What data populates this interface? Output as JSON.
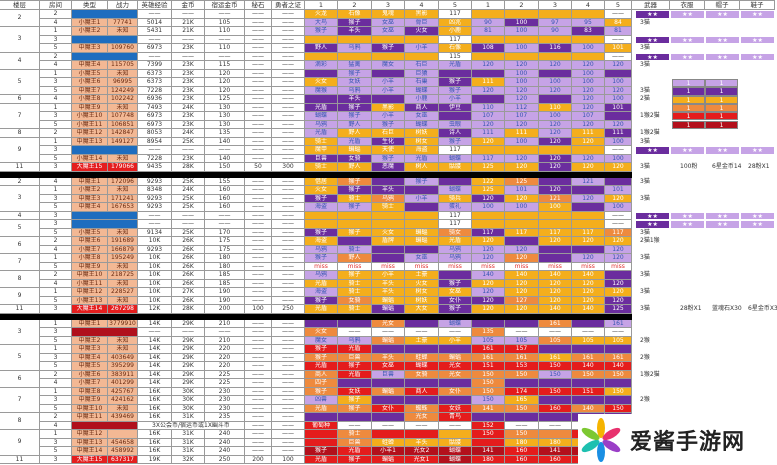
{
  "headers": [
    "楼层",
    "房间",
    "类型",
    "战力",
    "英雄经验",
    "金币",
    "宿运金币",
    "秘石",
    "勇者之证",
    "1",
    "2",
    "3",
    "4",
    "5",
    "1",
    "2",
    "3",
    "4",
    "5",
    "武器",
    "衣服",
    "帽子",
    "鞋子"
  ],
  "palette": {
    "Y": "#f4ae1c",
    "P": "#6b2d9e",
    "L": "#c6a3e6",
    "W": "#ffffff",
    "O": "#ee8a3e",
    "R": "#e41c1c",
    "D": "#b3101c"
  },
  "type_colors": {
    "s": "#f3b894",
    "b": "#1e6dbf",
    "r": "#e41e1e",
    "d": "#b0101c"
  },
  "stars": "★★",
  "sections": [
    [
      [
        "2",
        2,
        "2",
        "",
        "b",
        "",
        "——",
        "——",
        "——",
        "——",
        "——",
        "YYYYWYYYYW",
        "火龙|石像|鬼魂|黑影|117|||||——",
        "",
        "stars"
      ],
      [
        "",
        "",
        "4",
        "小魔王1",
        "s",
        "77741",
        "5014",
        "21K",
        "105",
        "——",
        "——",
        "LPLLYLPLLY",
        "大鸟|猴子|女巫|骨巨|凶兆|90|100|97|95|84",
        "3猫",
        ""
      ],
      [
        "3",
        3,
        "1",
        "小魔王2",
        "s",
        "未知",
        "5431",
        "21K",
        "110",
        "——",
        "——",
        "LPLPYLLLPL",
        "猴子|羊头|女巫|火女|小鹿|81|100|90|83|81",
        "",
        ""
      ],
      [
        "",
        "",
        "3",
        "",
        "b",
        "",
        "——",
        "——",
        "——",
        "——",
        "——",
        "YYYYWYYYYW",
        "||||117|||||——",
        "",
        "stars"
      ],
      [
        "",
        "",
        "5",
        "中魔王3",
        "s",
        "109760",
        "6973",
        "23K",
        "110",
        "——",
        "——",
        "PLPLYPLPLY",
        "野人|乌鸦|猴子|小羊|石像|108|100|116|100|101",
        "3猫",
        ""
      ],
      [
        "4",
        2,
        "2",
        "",
        "b",
        "",
        "——",
        "——",
        "——",
        "——",
        "——",
        "YYYYWYYYYW",
        "||||115|||||——",
        "",
        "stars"
      ],
      [
        "",
        "",
        "4",
        "中魔王4",
        "s",
        "115705",
        "7399",
        "23K",
        "115",
        "——",
        "——",
        "LLLLLLLLLL",
        "滴彩|猛禽|魔女|石巨|光盾|120|120|120|120|120",
        "3猫",
        ""
      ],
      [
        "5",
        3,
        "1",
        "小魔王5",
        "s",
        "未知",
        "6373",
        "23K",
        "120",
        "——",
        "——",
        "PLPLPPLPLP",
        "|猴子||巨猿|||100||100|",
        "",
        " "
      ],
      [
        "",
        "",
        "3",
        "小魔王6",
        "s",
        "96995",
        "6373",
        "23K",
        "120",
        "——",
        "——",
        "YLLLPYLLLL",
        "火女|女妖|小羊|石巢|猴子|111|100|100|100|100",
        "",
        ""
      ],
      [
        "",
        "",
        "5",
        "中魔王7",
        "s",
        "124249",
        "7228",
        "23K",
        "120",
        "——",
        "——",
        "LLLLLLLLLL",
        "魔猴|乌鸦|小羊|蝴蝶|猴子|120|120|120|120|120",
        "3猫",
        ""
      ],
      [
        "6",
        1,
        "4",
        "小魔王8",
        "s",
        "102242",
        "6936",
        "23K",
        "125",
        "——",
        "——",
        "PPPLLPLPLL",
        "|羊头||小鹿|小羊||120||120|100",
        "2猫",
        ""
      ],
      [
        "7",
        3,
        "1",
        "中魔王9",
        "s",
        "未知",
        "7493",
        "24K",
        "130",
        "——",
        "——",
        "PPYPPLLYLP",
        "光盾|猴子|黑影|商人|伊豆|110|112|110|120|101",
        "",
        ""
      ],
      [
        "",
        "",
        "3",
        "小魔王10",
        "s",
        "107748",
        "6973",
        "23K",
        "130",
        "——",
        "——",
        "LLLLPLLLLP",
        "蝴蝶|猴子|小羊|女巫||107|107|100|107|",
        "1猴2猫",
        ""
      ],
      [
        "",
        "",
        "5",
        "小魔王11",
        "s",
        "106851",
        "6973",
        "23K",
        "130",
        "——",
        "——",
        "LLLLLLLLLL",
        "乌鸦|野人|猴子|蝴蝶|虫眼|120|120|120|120|120",
        "",
        ""
      ],
      [
        "8",
        1,
        "2",
        "中魔王12",
        "s",
        "142847",
        "8053",
        "24K",
        "135",
        "——",
        "——",
        "LYYYPLYLYP",
        "光盾|野人|石巨|树妖|诗人|111|111|120|111|111",
        "1猴2猫",
        ""
      ],
      [
        "9",
        3,
        "1",
        "中魔王13",
        "s",
        "149127",
        "8954",
        "25K",
        "140",
        "——",
        "——",
        "YLPYLYLPYL",
        "骑士|光盾|生化|树女|猴子|120|100|120|120|100",
        "3猫",
        ""
      ],
      [
        "",
        "",
        "3",
        "",
        "b",
        "",
        "——",
        "——",
        "——",
        "——",
        "——",
        "YYYYWYYYYW",
        "魔甲|蝙蝠|天使|海盗|117|||||——",
        "",
        "stars"
      ],
      [
        "",
        "",
        "5",
        "小魔王14",
        "s",
        "未知",
        "7228",
        "23K",
        "140",
        "——",
        "——",
        "PPLLLLLPLL",
        "巨兽|女骑|猴子|光盾|蝴蝶|117|120|120|120|100",
        "",
        ""
      ],
      [
        "11",
        1,
        "3",
        "大魔王15",
        "r",
        "179066",
        "9435",
        "28K",
        "150",
        "50",
        "300",
        "YYPYYYYPYY",
        "骑士|野人|恶魔|树人|骷髅|125|120|120|120|120",
        "3猫|100粉|6星金币14|28粉X1",
        "multi"
      ]
    ],
    [
      [
        "2",
        1,
        "4",
        "中魔王1",
        "s",
        "172096",
        "9293",
        "25K",
        "155",
        "——",
        "——",
        "YOPLPYOPLP",
        "借居|猴子||猴子||122|125||121|",
        "3猫",
        ""
      ],
      [
        "3",
        3,
        "1",
        "小魔王2",
        "s",
        "未知",
        "8348",
        "24K",
        "160",
        "——",
        "——",
        "YPPPLYLPPL",
        "火女|猴子|羊头||蝴蝶|125|101|120||101",
        "",
        ""
      ],
      [
        "",
        "",
        "3",
        "中魔王3",
        "s",
        "171241",
        "9293",
        "25K",
        "160",
        "——",
        "——",
        "PYOLYPYOLY",
        "猴子|骑士|乌鸦|小羊|骑兵|120|120|121|120|120",
        "3猫",
        ""
      ],
      [
        "",
        "",
        "5",
        "中魔王4",
        "s",
        "167653",
        "9293",
        "25K",
        "160",
        "——",
        "——",
        "LLYPLLLYPL",
        "海盗|猴子|骑士||蛋礼|100|100|100||100",
        "",
        ""
      ],
      [
        "4",
        1,
        "3",
        "",
        "b",
        "",
        "——",
        "——",
        "——",
        "——",
        "——",
        "YYYYWYYYYW",
        "||||117|||||——",
        "",
        "stars"
      ],
      [
        "5",
        2,
        "3",
        "",
        "b",
        "",
        "——",
        "——",
        "——",
        "——",
        "——",
        "YYYYWYYYYW",
        "||||117|||||——",
        "",
        "stars"
      ],
      [
        "",
        "",
        "5",
        "小魔王5",
        "s",
        "未知",
        "9134",
        "25K",
        "170",
        "——",
        "——",
        "PYYYOPYYYO",
        "猴子|猴子|火女|蝙蝠|骑女|117|117|117|117|117",
        "3猫",
        ""
      ],
      [
        "6",
        2,
        "2",
        "中魔王6",
        "s",
        "191689",
        "10K",
        "26K",
        "175",
        "——",
        "——",
        "YPYYYYPYYY",
        "海盗||盾牌|蝙蝠|光盾|120||120|120|120",
        "2猫1猴",
        ""
      ],
      [
        "",
        "",
        "4",
        "小魔王7",
        "s",
        "166879",
        "9293",
        "26K",
        "175",
        "——",
        "——",
        "LLPPLLLPPL",
        "乌鸦|骑士|||乌鸦|120|120|||120",
        "",
        ""
      ],
      [
        "7",
        2,
        "1",
        "小魔王8",
        "s",
        "195249",
        "10K",
        "26K",
        "180",
        "——",
        "——",
        "LOPLLLOPLL",
        "猴子|野人||女巫|乌鸦|120|120||120|120",
        "3猫",
        ""
      ],
      [
        "",
        "",
        "5",
        "中魔王9",
        "s",
        "未知",
        "10K",
        "26K",
        "180",
        "——",
        "——",
        "WWWWWWWWWW",
        "miss|miss|miss|miss|miss|miss|miss|miss|miss|miss",
        "",
        "miss"
      ],
      [
        "8",
        2,
        "2",
        "中魔王10",
        "s",
        "218725",
        "10K",
        "26K",
        "185",
        "——",
        "——",
        "LYYYPLYYYP",
        "乌鸦|猴子|小羊|土豪||140|140|140|140|",
        "3猫",
        ""
      ],
      [
        "",
        "",
        "4",
        "小魔王11",
        "s",
        "未知",
        "10K",
        "26K",
        "185",
        "——",
        "——",
        "YYYYPYYYYP",
        "光盾|骑士|羊头|火女|猴子|120|120|120|120|120",
        "",
        ""
      ],
      [
        "9",
        2,
        "1",
        "中魔王12",
        "s",
        "228527",
        "10K",
        "27K",
        "190",
        "——",
        "——",
        "LYYYYLYYYY",
        "海盗|骑士|羊头|树女|女巫|120|120|120|120|120",
        "3猫",
        ""
      ],
      [
        "",
        "",
        "5",
        "小魔王13",
        "s",
        "未知",
        "10K",
        "26K",
        "190",
        "——",
        "——",
        "POYYPPOYYP",
        "猴子|女骑|蝙蝠|树妖|女仆|120|127|120|120|120",
        "",
        ""
      ],
      [
        "11",
        1,
        "3",
        "大魔王14",
        "r",
        "267298",
        "12K",
        "28K",
        "200",
        "100",
        "250",
        "YYPYPYYYYP",
        "光盾|骑士|蝙蝠|大女|猴子|120|120|140|140|125",
        "3猫|28粉X1|蓝魂石X30|6星金币X3",
        "multi"
      ]
    ],
    [
      [
        "3",
        3,
        "1",
        "中魔王1",
        "s",
        "3779910",
        "14K",
        "29K",
        "210",
        "——",
        "——",
        "PPOPLPPOPL",
        "||光女||蝴蝶|||161||161",
        "",
        ""
      ],
      [
        "",
        "",
        "3",
        "",
        "d",
        "",
        "——",
        "——",
        "——",
        "——",
        "——",
        "OWWWWOWWWW",
        "火女|——|——|——|——|135|——|——|——|——",
        "",
        ""
      ],
      [
        "",
        "",
        "5",
        "中魔王2",
        "s",
        "未知",
        "14K",
        "29K",
        "210",
        "——",
        "——",
        "LLOYYLLOYY",
        "魔女|乌鸦|蝙蝠|土豪|小羊|105|105|105|105|105",
        "2猴",
        ""
      ],
      [
        "5",
        3,
        "1",
        "中魔王3",
        "s",
        "未知",
        "14K",
        "29K",
        "220",
        "——",
        "——",
        "RRPPPRRPPP",
        "猴子|光盾||||161|157|||",
        "",
        ""
      ],
      [
        "",
        "",
        "3",
        "中魔王4",
        "s",
        "403649",
        "14K",
        "29K",
        "220",
        "——",
        "——",
        "OOOOOOOYOO",
        "猴子|巨兽|羊头|蛙蝉|蝙蝠|161|161|161|161|161",
        "2猴",
        ""
      ],
      [
        "",
        "",
        "5",
        "中魔王5",
        "s",
        "395299",
        "14K",
        "29K",
        "220",
        "——",
        "——",
        "RRRRRRRRRR",
        "光盾|猴子|女巫|蝴蝶|光女|151|153|150|140|140",
        "",
        ""
      ],
      [
        "6",
        2,
        "2",
        "小魔王6",
        "s",
        "383911",
        "14K",
        "29K",
        "225",
        "——",
        "——",
        "ORLOOOOLOO",
        "商人|光盾|巨兽|女骑|光女|150|150|150|150|150",
        "1猴2猫",
        ""
      ],
      [
        "",
        "",
        "4",
        "小魔王7",
        "s",
        "401299",
        "14K",
        "29K",
        "225",
        "——",
        "——",
        "OPPPPOPPPP",
        "四子|||||150||||",
        "",
        ""
      ],
      [
        "7",
        3,
        "1",
        "中魔王8",
        "s",
        "425767",
        "16K",
        "30K",
        "230",
        "——",
        "——",
        "OROROORRRY",
        "猴子|女妖|蝙蝠|商人|女仆|150|174|150|151|150",
        "",
        ""
      ],
      [
        "",
        "",
        "3",
        "中魔王9",
        "s",
        "424162",
        "16K",
        "30K",
        "230",
        "——",
        "——",
        "LYPPPLYPPP",
        "凶兽|猴子||||150|165|||",
        "2猴",
        ""
      ],
      [
        "",
        "",
        "5",
        "中魔王10",
        "s",
        "未知",
        "16K",
        "30K",
        "230",
        "——",
        "——",
        "OOROROOROR",
        "光盾|猴子|女仆|蜘蛛|女妖|141|150|160|140|150",
        "",
        ""
      ],
      [
        "8",
        2,
        "2",
        "中魔王11",
        "s",
        "439469",
        "16K",
        "31K",
        "235",
        "——",
        "——",
        "PPPORPPPPP",
        "|||光女|青鸟|||||",
        "",
        ""
      ],
      [
        "",
        "",
        "4",
        "",
        "d",
        "",
        "3X公会币/宿运币或1X幽斗币",
        "",
        "",
        "——",
        "——",
        "RWWWWRWWWW",
        "葡萄种|——|——|——|——|152|——|——|——|——",
        "",
        "span"
      ],
      [
        "9",
        3,
        "1",
        "中魔王12",
        "s",
        "",
        "16K",
        "31K",
        "240",
        "——",
        "——",
        "RORRYROORY",
        "|骑士||||150|150|||",
        "",
        ""
      ],
      [
        "",
        "",
        "3",
        "中魔王13",
        "s",
        "454658",
        "16K",
        "31K",
        "240",
        "——",
        "——",
        "ROYYYRYYYY",
        "|巨兽|蛙蝉|羊头|骷髅||180|180||",
        "",
        ""
      ],
      [
        "",
        "",
        "5",
        "中魔王14",
        "s",
        "458992",
        "16K",
        "31K",
        "240",
        "——",
        "——",
        "DRDDDDRDDD",
        "猴子|光盾|小羊1|光女2|蝴蝶|141|160|141|160|",
        "",
        ""
      ],
      [
        "11",
        1,
        "3",
        "大魔王15",
        "r",
        "637317",
        "19K",
        "32K",
        "250",
        "200",
        "100",
        "RRRRDRRRRR",
        "光盾|猴子|蝙蝠|光女1|蝴蝶|180|160|160||",
        "",
        ""
      ]
    ]
  ],
  "legend": {
    "colors": [
      "L",
      "P",
      "Y",
      "O",
      "R",
      "D"
    ],
    "values": [
      "1",
      "1",
      "1",
      "1",
      "1",
      "1"
    ]
  },
  "logo": {
    "text": "爱酱手游网"
  }
}
